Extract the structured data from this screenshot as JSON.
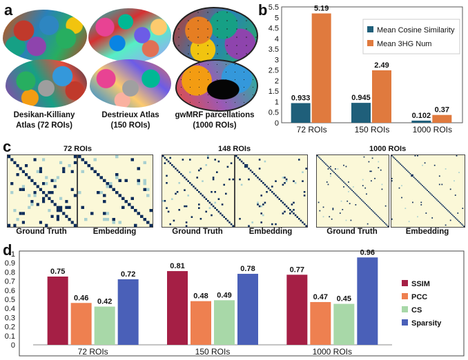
{
  "panels": {
    "a": "a",
    "b": "b",
    "c": "c",
    "d": "d"
  },
  "panel_a": {
    "atlases": [
      {
        "line1": "Desikan-Killiany",
        "line2": "Atlas  (72 ROIs)"
      },
      {
        "line1": "Destrieux Atlas",
        "line2": "(150 ROIs)"
      },
      {
        "line1": "gwMRF parcellations",
        "line2": "(1000 ROIs)"
      }
    ]
  },
  "panel_c": {
    "groups": [
      {
        "title": "72 ROIs",
        "left": "Ground Truth",
        "right": "Embedding"
      },
      {
        "title": "148 ROIs",
        "left": "Ground Truth",
        "right": "Embedding"
      },
      {
        "title": "1000 ROIs",
        "left": "Ground Truth",
        "right": "Embedding"
      }
    ]
  },
  "colors": {
    "teal": "#1f5f7a",
    "orange": "#e07a3e",
    "ssim": "#a51f45",
    "pcc": "#ee8050",
    "cs": "#a8d8a8",
    "sparsity": "#4a60b8",
    "matrix_bg": "#fbf8d8",
    "matrix_dark": "#0e2d5a",
    "matrix_light": "#a8d0d0"
  },
  "chart_data": [
    {
      "id": "b",
      "type": "bar",
      "categories": [
        "72 ROIs",
        "150 ROIs",
        "1000 ROIs"
      ],
      "series": [
        {
          "name": "Mean Cosine Similarity",
          "values": [
            0.933,
            0.945,
            0.102
          ],
          "labels": [
            "0.933",
            "0.945",
            "0.102"
          ]
        },
        {
          "name": "Mean  3HG Num",
          "values": [
            5.19,
            2.49,
            0.37
          ],
          "labels": [
            "5.19",
            "2.49",
            "0.37"
          ]
        }
      ],
      "ylim": [
        0,
        5.5
      ],
      "yticks": [
        "0",
        "0.5",
        "1",
        "1.5",
        "2",
        "2.5",
        "3",
        "3.5",
        "4",
        "4.5",
        "5",
        "5.5"
      ],
      "legend": "top-right"
    },
    {
      "id": "d",
      "type": "bar",
      "categories": [
        "72 ROIs",
        "150 ROIs",
        "1000 ROIs"
      ],
      "series": [
        {
          "name": "SSIM",
          "values": [
            0.75,
            0.81,
            0.77
          ],
          "labels": [
            "0.75",
            "0.81",
            "0.77"
          ]
        },
        {
          "name": "PCC",
          "values": [
            0.46,
            0.48,
            0.47
          ],
          "labels": [
            "0.46",
            "0.48",
            "0.47"
          ]
        },
        {
          "name": "CS",
          "values": [
            0.42,
            0.49,
            0.45
          ],
          "labels": [
            "0.42",
            "0.49",
            "0.45"
          ]
        },
        {
          "name": "Sparsity",
          "values": [
            0.72,
            0.78,
            0.96
          ],
          "labels": [
            "0.72",
            "0.78",
            "0.96"
          ]
        }
      ],
      "ylim": [
        0,
        1
      ],
      "yticks": [
        "0",
        "0.1",
        "0.2",
        "0.3",
        "0.4",
        "0.5",
        "0.6",
        "0.7",
        "0.8",
        "0.9",
        "1"
      ],
      "legend": "right"
    }
  ]
}
